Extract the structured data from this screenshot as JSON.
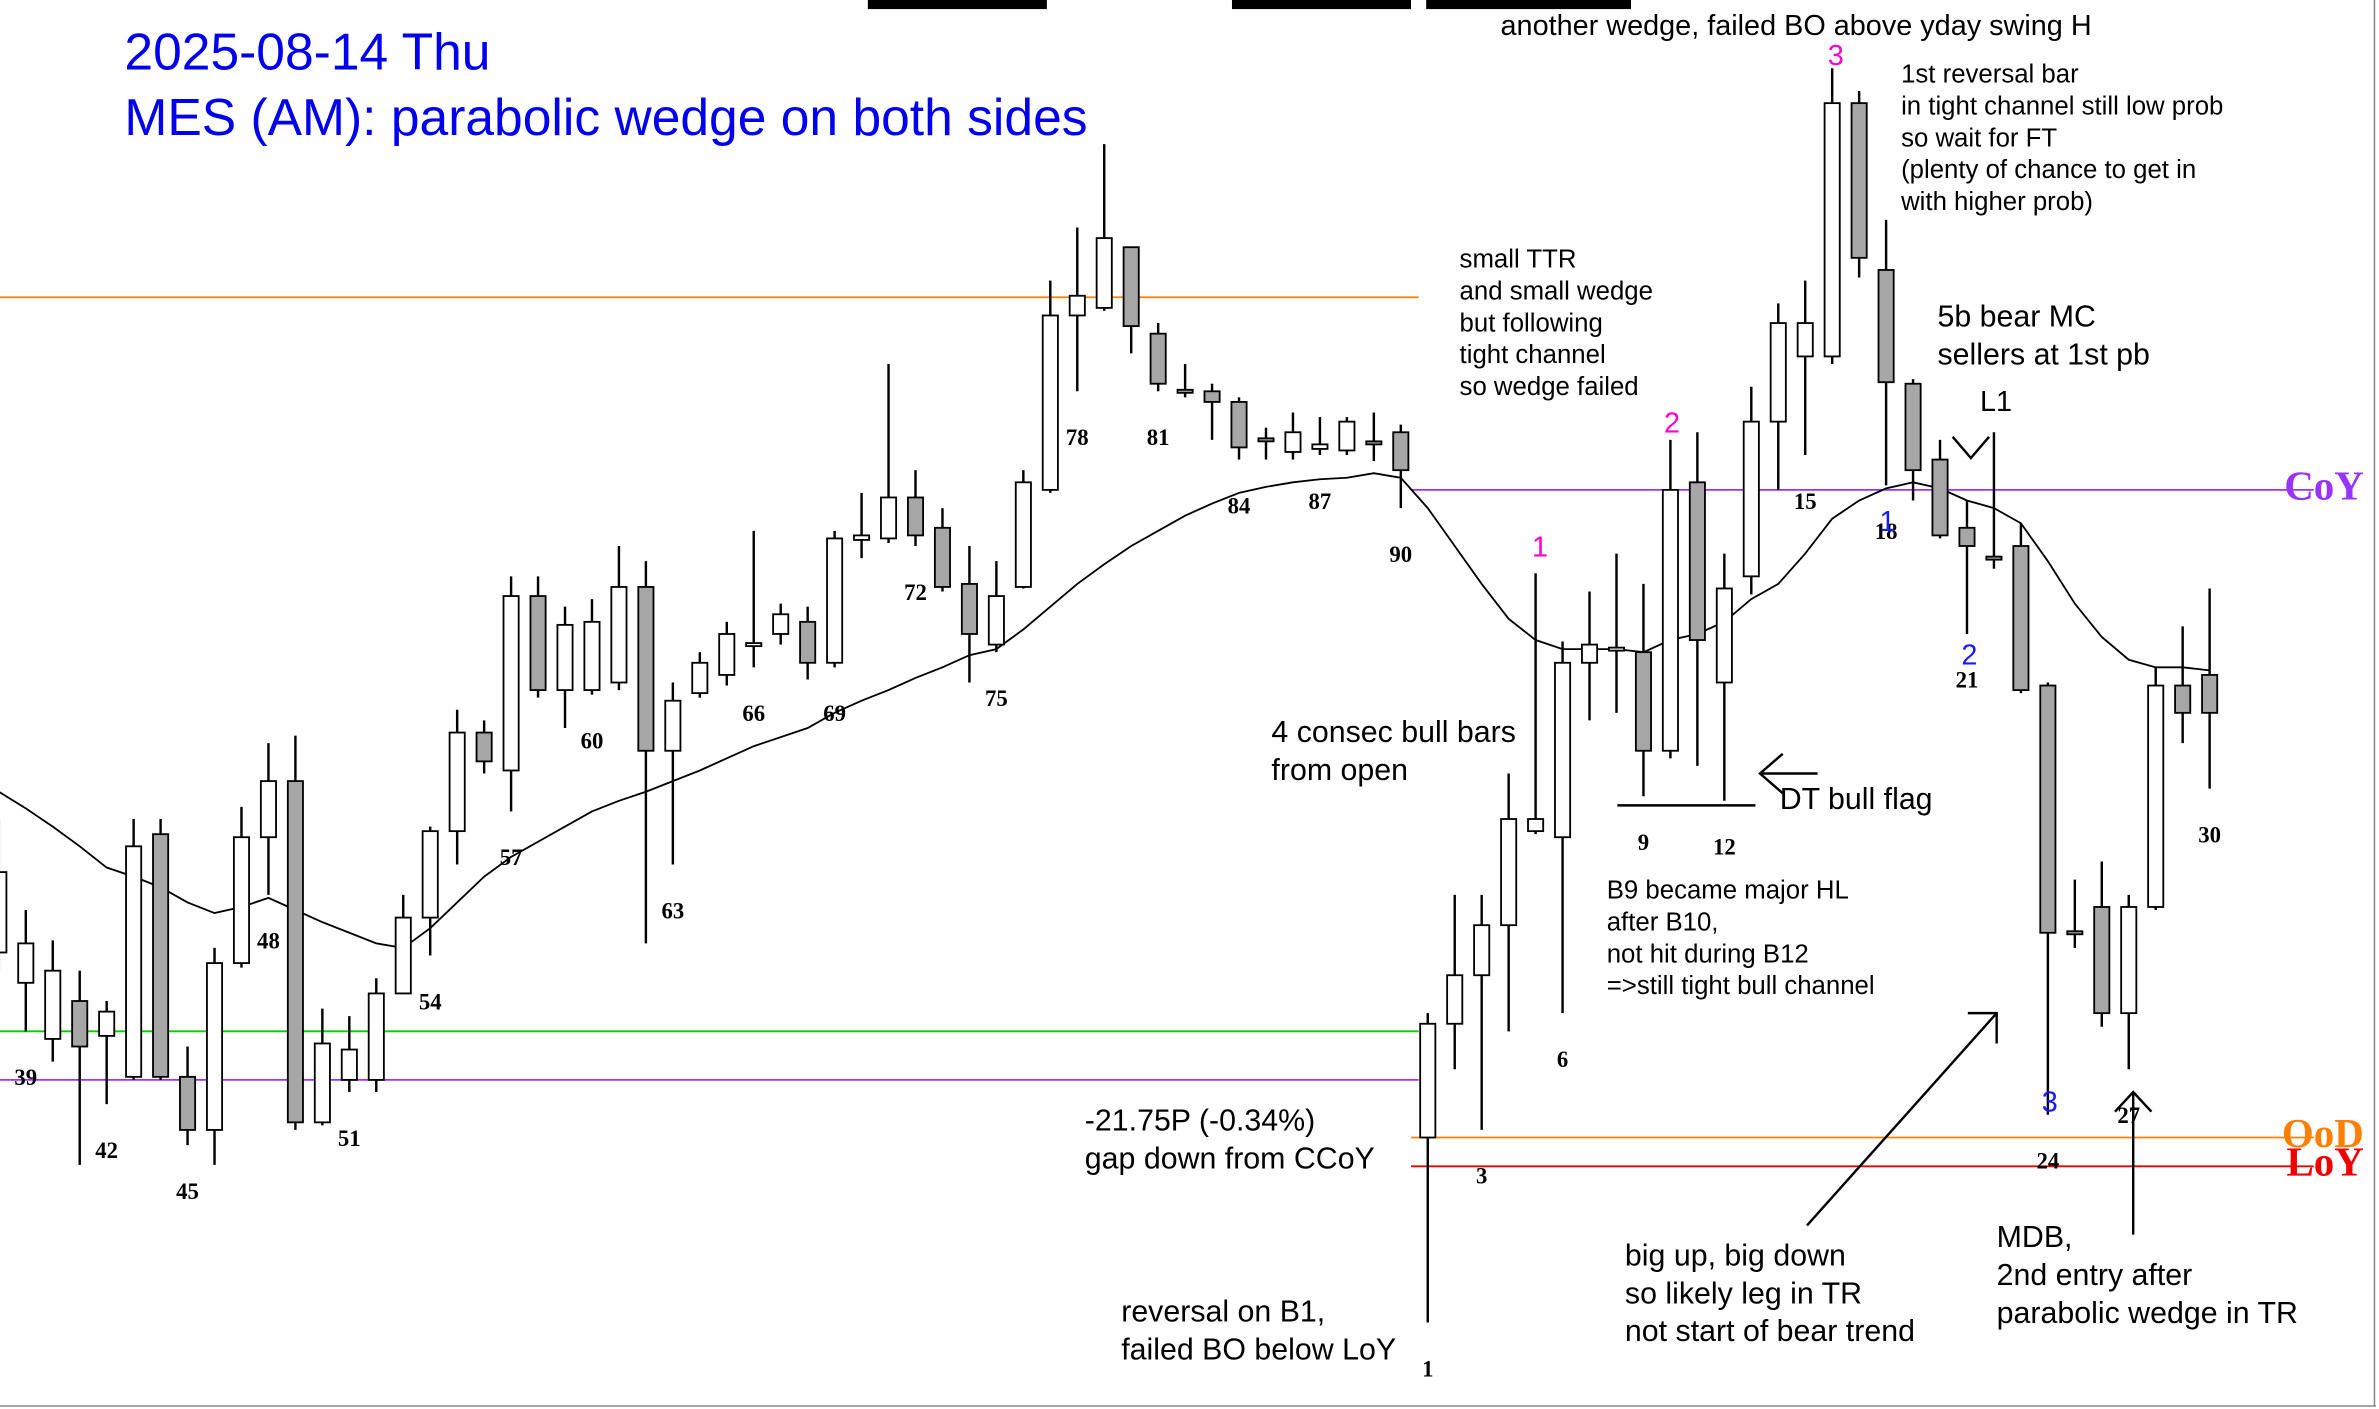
{
  "chart_data": {
    "type": "candlestick",
    "title": "2025-08-14 Thu",
    "subtitle": "MES (AM): parabolic wedge on both sides",
    "title_color": "#0000ee",
    "ylim": [
      6457.55,
      6504
    ],
    "up_color": "#ffffff",
    "down_color": "#a6a6a6",
    "categories": [
      null,
      "39",
      null,
      null,
      "42",
      null,
      null,
      "45",
      null,
      null,
      "48",
      null,
      null,
      "51",
      null,
      null,
      "54",
      null,
      null,
      "57",
      null,
      null,
      "60",
      null,
      null,
      "63",
      null,
      null,
      "66",
      null,
      null,
      "69",
      null,
      null,
      "72",
      null,
      null,
      "75",
      null,
      null,
      "78",
      null,
      null,
      "81",
      null,
      null,
      "84",
      null,
      null,
      "87",
      null,
      null,
      "90",
      "1",
      null,
      "3",
      null,
      null,
      "6",
      null,
      null,
      "9",
      null,
      null,
      "12",
      null,
      null,
      "15",
      null,
      null,
      "18",
      null,
      null,
      "21",
      null,
      null,
      "24",
      null,
      null,
      "27",
      null,
      null,
      "30"
    ],
    "open": [
      6472.6,
      6471.6,
      6469.75,
      6471,
      6469.85,
      6468.5,
      6476.5,
      6468.5,
      6466.75,
      6472.25,
      6476.4,
      6478.25,
      6467,
      6468.4,
      6468.4,
      6471.25,
      6473.75,
      6476.6,
      6479.85,
      6478.6,
      6484.35,
      6481.25,
      6481.25,
      6481.5,
      6484.65,
      6479.25,
      6481.15,
      6481.75,
      6482.7,
      6483.1,
      6483.5,
      6482.15,
      6486.2,
      6486.25,
      6487.6,
      6486.6,
      6484.75,
      6482.75,
      6484.65,
      6487.85,
      6493.6,
      6493.85,
      6495.85,
      6493,
      6491.15,
      6491.1,
      6490.75,
      6489.55,
      6489.1,
      6489.2,
      6489.15,
      6489.45,
      6489.75,
      6466.5,
      6470.25,
      6471.85,
      6473.5,
      6476.6,
      6476.4,
      6482.15,
      6482.55,
      6482.5,
      6479.25,
      6488.1,
      6481.5,
      6485,
      6490.1,
      6492.25,
      6492.25,
      6500.6,
      6495.1,
      6491.35,
      6488.85,
      6486.6,
      6485.65,
      6486,
      6481.4,
      6473.3,
      6474.1,
      6470.6,
      6474.1,
      6481.4,
      6481.75
    ],
    "high": [
      6477,
      6474,
      6473,
      6472,
      6471,
      6477,
      6477,
      6469.5,
      6472.75,
      6477.4,
      6479.5,
      6479.75,
      6470.75,
      6470.5,
      6471.75,
      6474.5,
      6476.75,
      6480.6,
      6480.25,
      6485,
      6485,
      6484,
      6484.25,
      6486,
      6485.5,
      6481.5,
      6482.5,
      6483.5,
      6486.5,
      6484.1,
      6484,
      6486.5,
      6487.75,
      6492,
      6488.5,
      6487.25,
      6486,
      6485.5,
      6488.5,
      6494.75,
      6496.5,
      6499.25,
      6495.85,
      6493.35,
      6492,
      6491.35,
      6490.9,
      6489.9,
      6490.4,
      6490.25,
      6490.25,
      6490.4,
      6490,
      6470.6,
      6474.5,
      6474.5,
      6478.5,
      6485.1,
      6482.85,
      6484.5,
      6485.75,
      6484.75,
      6489.5,
      6489.75,
      6485.75,
      6491.25,
      6494,
      6494.75,
      6501.75,
      6501,
      6496.75,
      6491.5,
      6489.5,
      6487.5,
      6489.75,
      6486.75,
      6481.5,
      6475,
      6475.6,
      6474.5,
      6482,
      6483.35,
      6484.6
    ],
    "low": [
      6472,
      6470,
      6469,
      6465.6,
      6467.6,
      6468.4,
      6468.4,
      6466.25,
      6465.6,
      6472.1,
      6474.5,
      6466.75,
      6466.9,
      6468,
      6468,
      6471.25,
      6472.5,
      6475.5,
      6478.5,
      6477.25,
      6481,
      6480,
      6481.1,
      6481.25,
      6472.9,
      6475.5,
      6481,
      6481.4,
      6482,
      6482.75,
      6481.6,
      6482,
      6485.6,
      6486.1,
      6486,
      6484.5,
      6481.5,
      6482.5,
      6484.6,
      6487.75,
      6491.1,
      6493.75,
      6492.35,
      6491.1,
      6490.9,
      6489.5,
      6488.85,
      6488.85,
      6488.85,
      6489,
      6489,
      6488.8,
      6487.25,
      6460.4,
      6468.75,
      6466.75,
      6470,
      6476.5,
      6470.6,
      6480.25,
      6480.5,
      6477.75,
      6479,
      6478.75,
      6477.6,
      6484.4,
      6487.85,
      6489,
      6492,
      6494.85,
      6488,
      6487.5,
      6486.25,
      6483.1,
      6485.25,
      6481.15,
      6467.25,
      6472.75,
      6470.15,
      6468.75,
      6474,
      6479.5,
      6478
    ],
    "close": [
      6475.25,
      6472.9,
      6472,
      6469.5,
      6470.65,
      6476.1,
      6468.5,
      6466.75,
      6472.25,
      6476.4,
      6478.25,
      6467,
      6469.6,
      6469.4,
      6471.25,
      6473.75,
      6476.6,
      6479.85,
      6478.9,
      6484.35,
      6481.25,
      6483.4,
      6483.5,
      6484.65,
      6479.25,
      6480.9,
      6482.15,
      6483.1,
      6482.8,
      6483.75,
      6482.15,
      6486.25,
      6486.35,
      6487.6,
      6486.35,
      6484.65,
      6483.1,
      6484.35,
      6488.1,
      6493.6,
      6494.25,
      6496.15,
      6493.25,
      6491.35,
      6491.05,
      6490.75,
      6489.25,
      6489.45,
      6489.75,
      6489.35,
      6490.1,
      6489.35,
      6488.5,
      6470.25,
      6471.85,
      6473.5,
      6477,
      6477,
      6482.15,
      6482.75,
      6482.65,
      6479.25,
      6487.85,
      6482.9,
      6484.6,
      6490.1,
      6493.35,
      6493.35,
      6500.6,
      6495.5,
      6491.4,
      6488.5,
      6486.35,
      6486,
      6485.55,
      6481.25,
      6473.25,
      6473.2,
      6470.6,
      6474.1,
      6481.4,
      6480.5,
      6480.5
    ],
    "ma": {
      "color": "#000000",
      "values": [
        6477.9,
        6477.35,
        6476.75,
        6476.1,
        6475.4,
        6475.1,
        6474.75,
        6474.25,
        6473.9,
        6474.1,
        6474.4,
        6474,
        6473.6,
        6473.25,
        6472.9,
        6472.75,
        6473.4,
        6474.25,
        6475.1,
        6475.75,
        6476.25,
        6476.75,
        6477.25,
        6477.6,
        6477.9,
        6478.25,
        6478.6,
        6479,
        6479.4,
        6479.7,
        6480,
        6480.5,
        6480.9,
        6481.25,
        6481.65,
        6482,
        6482.4,
        6482.6,
        6483.25,
        6484,
        6484.75,
        6485.4,
        6486,
        6486.5,
        6487,
        6487.4,
        6487.75,
        6487.95,
        6488.1,
        6488.2,
        6488.25,
        6488.4,
        6488.25,
        6487.25,
        6486,
        6484.75,
        6483.6,
        6482.9,
        6482.6,
        6482.6,
        6482.6,
        6482.5,
        6482.9,
        6483.1,
        6483.5,
        6484.25,
        6484.75,
        6485.75,
        6486.9,
        6487.5,
        6487.9,
        6488.1,
        6487.9,
        6487.5,
        6487.25,
        6486.75,
        6485.5,
        6484.1,
        6483,
        6482.25,
        6482,
        6482,
        6481.9
      ]
    },
    "levels": [
      {
        "value": 6494.2,
        "color": "#ff8000"
      },
      {
        "value": 6470,
        "color": "#00cc00"
      },
      {
        "value": 6468.4,
        "color": "#9933ff"
      },
      {
        "name": "CoY",
        "value": 6487.85,
        "color": "#9933ff"
      },
      {
        "name": "OoD",
        "value": 6466.5,
        "color": "#ff8000"
      },
      {
        "name": "LoY",
        "value": 6465.55,
        "color": "#ee0000"
      }
    ],
    "annotations": [
      {
        "lines": [
          "another wedge, failed BO above yday swing H"
        ]
      },
      {
        "lines": [
          "1st reversal bar",
          "in tight channel still low prob",
          "so wait for FT",
          "(plenty of chance to get in",
          "with higher prob)"
        ]
      },
      {
        "lines": [
          "small TTR",
          "and small wedge",
          "but following",
          "tight channel",
          "so wedge failed"
        ]
      },
      {
        "lines": [
          "5b bear MC",
          "sellers at 1st pb"
        ]
      },
      {
        "lines": [
          "L1"
        ]
      },
      {
        "lines": [
          "4 consec bull bars",
          "from open"
        ]
      },
      {
        "lines": [
          "DT bull flag"
        ]
      },
      {
        "lines": [
          "B9 became major HL",
          "after B10,",
          "not hit during B12",
          "=>still tight bull channel"
        ]
      },
      {
        "lines": [
          "-21.75P (-0.34%)",
          "gap down from CCoY"
        ]
      },
      {
        "lines": [
          "reversal on B1,",
          "failed BO below LoY"
        ]
      },
      {
        "lines": [
          "big up, big down",
          "so likely leg in TR",
          "not start of bear trend"
        ]
      },
      {
        "lines": [
          "MDB,",
          "2nd entry after",
          "parabolic wedge in TR"
        ]
      }
    ],
    "counts": [
      {
        "text": "3",
        "color": "#ff00cc"
      },
      {
        "text": "2",
        "color": "#ff00cc"
      },
      {
        "text": "1",
        "color": "#ff00cc"
      },
      {
        "text": "1",
        "color": "#1a1aff"
      },
      {
        "text": "2",
        "color": "#1a1aff"
      },
      {
        "text": "3",
        "color": "#1a1aff"
      }
    ]
  }
}
